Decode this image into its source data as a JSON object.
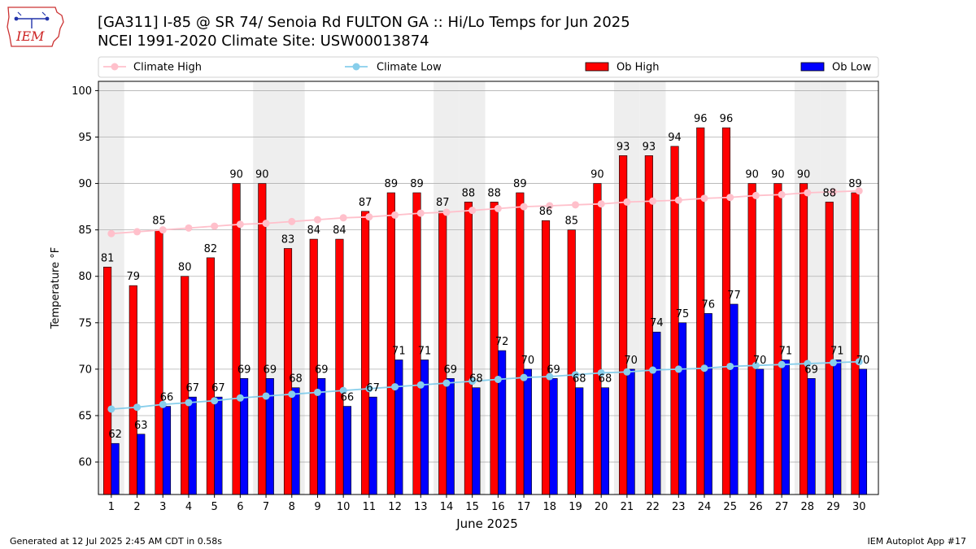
{
  "title": {
    "line1": "[GA311] I-85 @ SR 74/ Senoia Rd FULTON  GA :: Hi/Lo Temps for Jun 2025",
    "line2": "NCEI 1991-2020 Climate Site: USW00013874"
  },
  "logo_text": "IEM",
  "footer": {
    "left": "Generated at 12 Jul 2025 2:45 AM CDT in 0.58s",
    "right": "IEM Autoplot App #17"
  },
  "colors": {
    "ob_high": "#ff0000",
    "ob_low": "#0000ff",
    "climate_high": "#ffc0cb",
    "climate_low": "#87ceeb",
    "weekend_shade": "#eeeeee",
    "grid": "#b0b0b0"
  },
  "chart_data": {
    "type": "bar",
    "xlabel": "June 2025",
    "ylabel": "Temperature °F",
    "ylim": [
      56.5,
      101
    ],
    "yticks": [
      60,
      65,
      70,
      75,
      80,
      85,
      90,
      95,
      100
    ],
    "grid": "horizontal",
    "legend_position": "top",
    "categories": [
      "1",
      "2",
      "3",
      "4",
      "5",
      "6",
      "7",
      "8",
      "9",
      "10",
      "11",
      "12",
      "13",
      "14",
      "15",
      "16",
      "17",
      "18",
      "19",
      "20",
      "21",
      "22",
      "23",
      "24",
      "25",
      "26",
      "27",
      "28",
      "29",
      "30"
    ],
    "shaded_days": [
      1,
      7,
      8,
      14,
      15,
      21,
      22,
      28,
      29
    ],
    "series": [
      {
        "name": "Climate High",
        "kind": "line",
        "values": [
          84.6,
          84.8,
          85.0,
          85.2,
          85.4,
          85.6,
          85.7,
          85.9,
          86.1,
          86.3,
          86.4,
          86.6,
          86.8,
          86.9,
          87.1,
          87.3,
          87.5,
          87.6,
          87.7,
          87.8,
          88.0,
          88.1,
          88.2,
          88.4,
          88.5,
          88.7,
          88.8,
          89.0,
          89.1,
          89.2
        ]
      },
      {
        "name": "Climate Low",
        "kind": "line",
        "values": [
          65.7,
          65.9,
          66.2,
          66.4,
          66.6,
          66.9,
          67.1,
          67.3,
          67.5,
          67.7,
          67.9,
          68.1,
          68.3,
          68.5,
          68.7,
          68.9,
          69.1,
          69.2,
          69.4,
          69.6,
          69.7,
          69.9,
          70.0,
          70.1,
          70.3,
          70.4,
          70.5,
          70.6,
          70.7,
          70.8
        ]
      },
      {
        "name": "Ob High",
        "kind": "bar",
        "values": [
          81,
          79,
          85,
          80,
          82,
          90,
          90,
          83,
          84,
          84,
          87,
          89,
          89,
          87,
          88,
          88,
          89,
          86,
          85,
          90,
          93,
          93,
          94,
          96,
          96,
          90,
          90,
          90,
          88,
          89
        ],
        "labels": [
          "81",
          "79",
          "85",
          "80",
          "82",
          "90",
          "90",
          "83",
          "84",
          "84",
          "87",
          "89",
          "89",
          "87",
          "88",
          "88",
          "89",
          "86",
          "85",
          "90",
          "93",
          "93",
          "94",
          "96",
          "96",
          "90",
          "90",
          "90",
          "88",
          "89"
        ]
      },
      {
        "name": "Ob Low",
        "kind": "bar",
        "values": [
          62,
          63,
          66,
          67,
          67,
          69,
          69,
          68,
          69,
          66,
          67,
          71,
          71,
          69,
          68,
          72,
          70,
          69,
          68,
          68,
          70,
          74,
          75,
          76,
          77,
          70,
          71,
          69,
          71,
          70
        ],
        "labels": [
          "62",
          "63",
          "66",
          "67",
          "67",
          "69",
          "69",
          "68",
          "69",
          "66",
          "67",
          "71",
          "71",
          "69",
          "68",
          "72",
          "70",
          "69",
          "68",
          "68",
          "70",
          "74",
          "75",
          "76",
          "77",
          "70",
          "71",
          "69",
          "71",
          "70"
        ]
      }
    ]
  }
}
